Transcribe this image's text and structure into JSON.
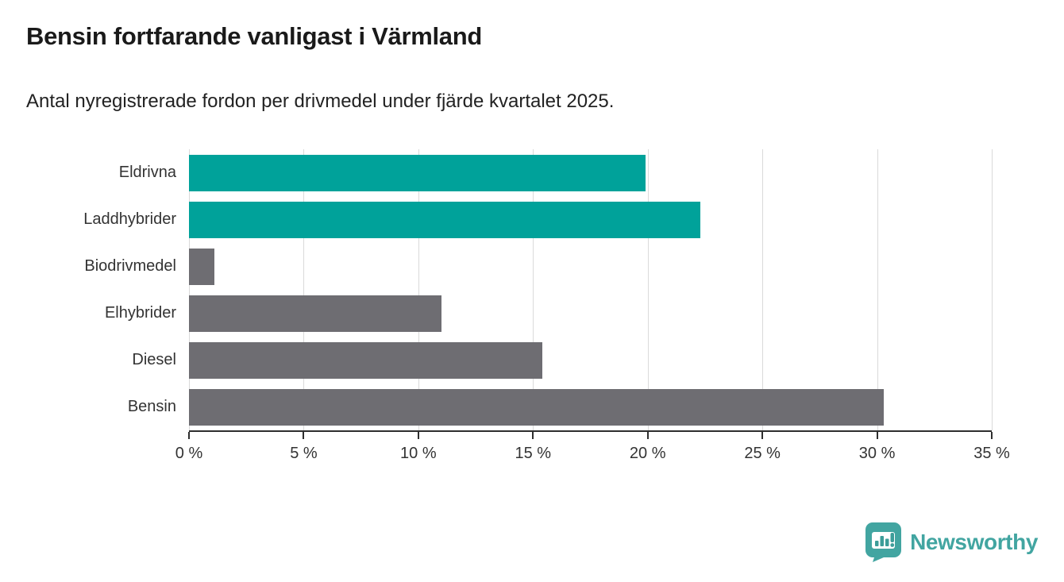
{
  "header": {
    "title": "Bensin fortfarande vanligast i Värmland",
    "subtitle": "Antal nyregistrerade fordon per drivmedel under fjärde kvartalet 2025."
  },
  "chart_data": {
    "type": "bar",
    "orientation": "horizontal",
    "title": "Bensin fortfarande vanligast i Värmland",
    "subtitle": "Antal nyregistrerade fordon per drivmedel under fjärde kvartalet 2025.",
    "categories": [
      "Eldrivna",
      "Laddhybrider",
      "Biodrivmedel",
      "Elhybrider",
      "Diesel",
      "Bensin"
    ],
    "values": [
      19.9,
      22.3,
      1.1,
      11.0,
      15.4,
      30.3
    ],
    "unit": "%",
    "xlabel": "",
    "ylabel": "",
    "xlim": [
      0,
      35
    ],
    "x_ticks": [
      0,
      5,
      10,
      15,
      20,
      25,
      30,
      35
    ],
    "x_tick_labels": [
      "0 %",
      "5 %",
      "10 %",
      "15 %",
      "20 %",
      "25 %",
      "30 %",
      "35 %"
    ],
    "grid": true,
    "legend": false,
    "bar_colors": [
      "#00a29a",
      "#00a29a",
      "#6e6d72",
      "#6e6d72",
      "#6e6d72",
      "#6e6d72"
    ]
  },
  "colors": {
    "highlight_teal": "#00a29a",
    "neutral_gray": "#6e6d72",
    "gridline": "#dadada",
    "axis": "#2e2e2e",
    "text_dark": "#1a1a1a",
    "text_medium": "#333333",
    "brand_teal": "#42a5a1"
  },
  "branding": {
    "logo_text": "Newsworthy"
  }
}
